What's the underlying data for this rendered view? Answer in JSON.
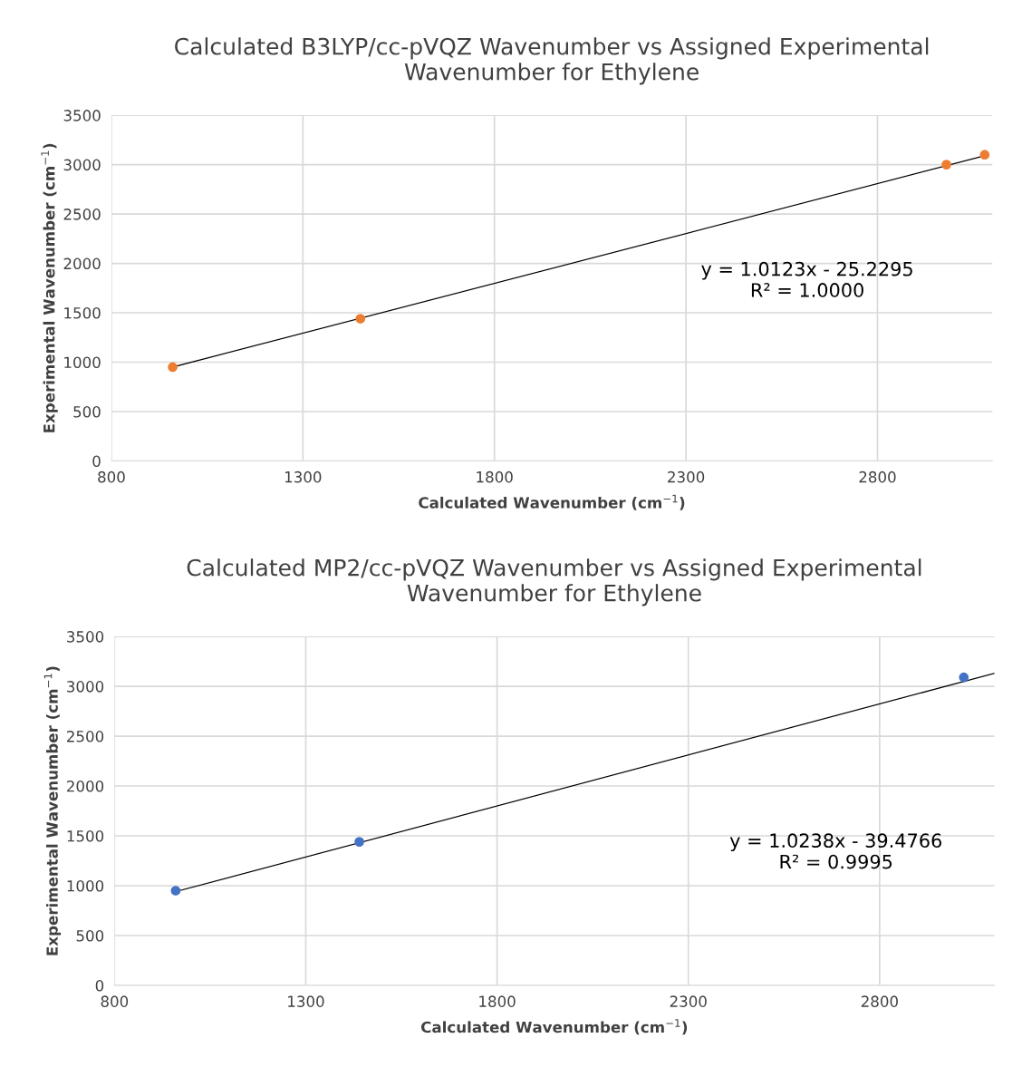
{
  "chart_data": [
    {
      "type": "scatter",
      "title": "Calculated B3LYP/cc-pVQZ Wavenumber vs Assigned Experimental\nWavenumber for Ethylene",
      "xlabel": "Calculated Wavenumber (cm$^{−1}$)",
      "ylabel": "Experimental Wavenumber (cm$^{−1}$)",
      "xlim": [
        800,
        3100
      ],
      "xticks": [
        800,
        1300,
        1800,
        2300,
        2800
      ],
      "ylim": [
        0,
        3500
      ],
      "yticks": [
        0,
        500,
        1000,
        1500,
        2000,
        2500,
        3000,
        3500
      ],
      "grid": true,
      "series": [
        {
          "color": "#ed7d31",
          "marker": "circle",
          "x": [
            960,
            1450,
            2980,
            3080
          ],
          "values": [
            950,
            1440,
            3000,
            3100
          ]
        },
        {
          "type": "line",
          "marker": "none",
          "color": "#000000",
          "x": [
            960,
            3080
          ],
          "values": [
            950,
            3090
          ]
        }
      ],
      "annotations": [
        "y = 1.0123x - 25.2295\nR² = 1.0000"
      ]
    },
    {
      "type": "scatter",
      "title": "Calculated MP2/cc-pVQZ Wavenumber vs Assigned Experimental\nWavenumber for Ethylene",
      "xlabel": "Calculated Wavenumber (cm$^{−1}$)",
      "ylabel": "Experimental Wavenumber (cm$^{−1}$)",
      "xlim": [
        800,
        3100
      ],
      "xticks": [
        800,
        1300,
        1800,
        2300,
        2800
      ],
      "ylim": [
        0,
        3500
      ],
      "yticks": [
        0,
        500,
        1000,
        1500,
        2000,
        2500,
        3000,
        3500
      ],
      "grid": true,
      "series": [
        {
          "color": "#4472c4",
          "marker": "circle",
          "x": [
            960,
            1440,
            3020
          ],
          "values": [
            950,
            1440,
            3090
          ]
        },
        {
          "type": "line",
          "marker": "none",
          "color": "#000000",
          "x": [
            960,
            3100
          ],
          "values": [
            940,
            3130
          ]
        }
      ],
      "annotations": [
        "y = 1.0238x - 39.4766\nR² = 0.9995"
      ]
    }
  ]
}
